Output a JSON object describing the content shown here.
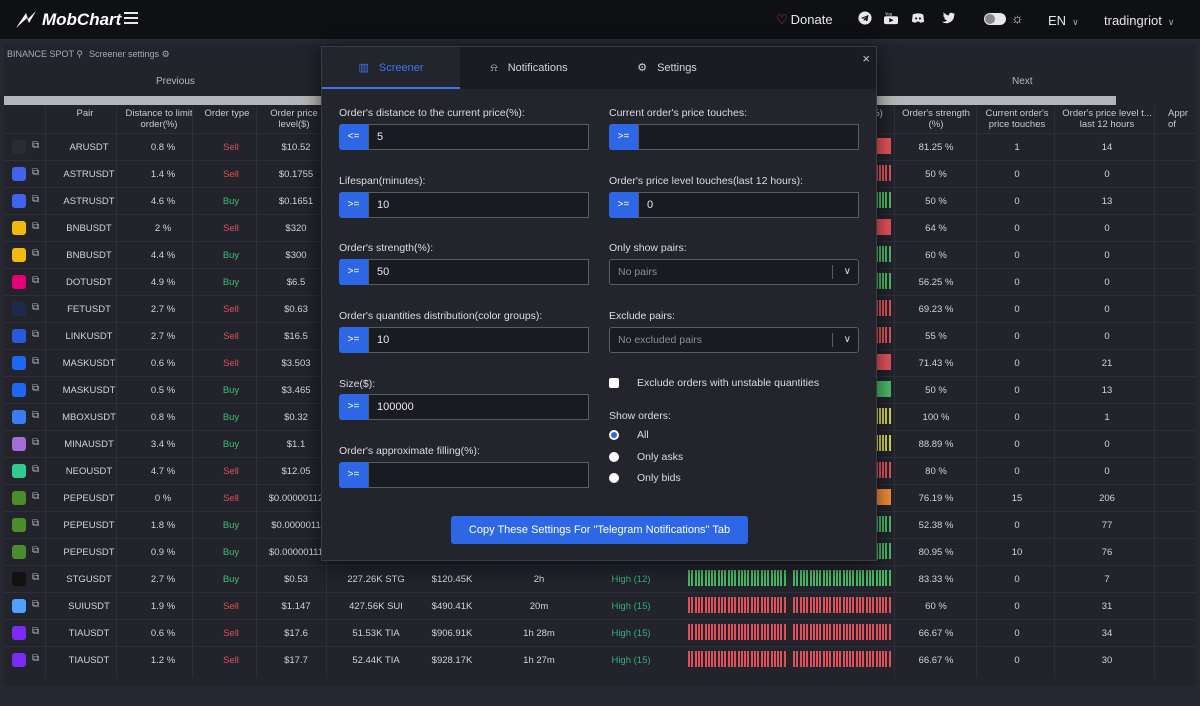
{
  "app": {
    "logo_text": "MobChart"
  },
  "topbar": {
    "donate": "Donate",
    "language": "EN",
    "user": "tradingriot"
  },
  "subbar": {
    "exchange": "BINANCE SPOT",
    "settings": "Screener settings"
  },
  "nav": {
    "previous": "Previous",
    "next": "Next"
  },
  "table": {
    "headers_left": [
      "Pair",
      "Distance to limit order(%)",
      "Order type",
      "Order price level($)"
    ],
    "headers_right": [
      "Order's strength (%)",
      "Current order's price touches",
      "Order's price level t... last 12 hours",
      "Appr of"
    ],
    "partial_right_header": "%)",
    "rows": [
      {
        "pair": "ARUSDT",
        "dist": "0.8 %",
        "type": "Sell",
        "price": "$10.52",
        "strength": "81.25 %",
        "touches": "1",
        "level_touches": "14",
        "icon": "#2b2c33",
        "color": "#e0505a",
        "bars": "solid"
      },
      {
        "pair": "ASTRUSDT",
        "dist": "1.4 %",
        "type": "Sell",
        "price": "$0.1755",
        "strength": "50 %",
        "touches": "0",
        "level_touches": "0",
        "icon": "#4263eb",
        "color": "#e0505a",
        "bars": "striped"
      },
      {
        "pair": "ASTRUSDT",
        "dist": "4.6 %",
        "type": "Buy",
        "price": "$0.1651",
        "strength": "50 %",
        "touches": "0",
        "level_touches": "13",
        "icon": "#4263eb",
        "color": "#47b865",
        "bars": "striped"
      },
      {
        "pair": "BNBUSDT",
        "dist": "2 %",
        "type": "Sell",
        "price": "$320",
        "strength": "64 %",
        "touches": "0",
        "level_touches": "0",
        "icon": "#f0b90b",
        "color": "#e0505a",
        "bars": "solid"
      },
      {
        "pair": "BNBUSDT",
        "dist": "4.4 %",
        "type": "Buy",
        "price": "$300",
        "strength": "60 %",
        "touches": "0",
        "level_touches": "0",
        "icon": "#f0b90b",
        "color": "#47b865",
        "bars": "striped"
      },
      {
        "pair": "DOTUSDT",
        "dist": "4.9 %",
        "type": "Buy",
        "price": "$6.5",
        "strength": "56.25 %",
        "touches": "0",
        "level_touches": "0",
        "icon": "#e6007a",
        "color": "#47b865",
        "bars": "striped"
      },
      {
        "pair": "FETUSDT",
        "dist": "2.7 %",
        "type": "Sell",
        "price": "$0.63",
        "strength": "69.23 %",
        "touches": "0",
        "level_touches": "0",
        "icon": "#1d2a4a",
        "color": "#e0505a",
        "bars": "striped"
      },
      {
        "pair": "LINKUSDT",
        "dist": "2.7 %",
        "type": "Sell",
        "price": "$16.5",
        "strength": "55 %",
        "touches": "0",
        "level_touches": "0",
        "icon": "#2a5ada",
        "color": "#e0505a",
        "bars": "striped"
      },
      {
        "pair": "MASKUSDT",
        "dist": "0.6 %",
        "type": "Sell",
        "price": "$3.503",
        "strength": "71.43 %",
        "touches": "0",
        "level_touches": "21",
        "icon": "#1c68f3",
        "color": "#e0505a",
        "bars": "solid"
      },
      {
        "pair": "MASKUSDT",
        "dist": "0.5 %",
        "type": "Buy",
        "price": "$3.465",
        "strength": "50 %",
        "touches": "0",
        "level_touches": "13",
        "icon": "#1c68f3",
        "color": "#47b865",
        "bars": "solid"
      },
      {
        "pair": "MBOXUSDT",
        "dist": "0.8 %",
        "type": "Buy",
        "price": "$0.32",
        "strength": "100 %",
        "touches": "0",
        "level_touches": "1",
        "icon": "#3b7bf5",
        "color": "#d4d34a",
        "bars": "striped"
      },
      {
        "pair": "MINAUSDT",
        "dist": "3.4 %",
        "type": "Buy",
        "price": "$1.1",
        "strength": "88.89 %",
        "touches": "0",
        "level_touches": "0",
        "icon": "#a56bd9",
        "color": "#d4d34a",
        "bars": "striped"
      },
      {
        "pair": "NEOUSDT",
        "dist": "4.7 %",
        "type": "Sell",
        "price": "$12.05",
        "strength": "80 %",
        "touches": "0",
        "level_touches": "0",
        "icon": "#2fcb8f",
        "color": "#e0505a",
        "bars": "striped"
      },
      {
        "pair": "PEPEUSDT",
        "dist": "0 %",
        "type": "Sell",
        "price": "$0.00000112",
        "strength": "76.19 %",
        "touches": "15",
        "level_touches": "206",
        "icon": "#4c8c2b",
        "color": "#ee8a3a",
        "bars": "solid"
      },
      {
        "pair": "PEPEUSDT",
        "dist": "1.8 %",
        "type": "Buy",
        "price": "$0.0000011",
        "strength": "52.38 %",
        "touches": "0",
        "level_touches": "77",
        "icon": "#4c8c2b",
        "color": "#47b865",
        "bars": "striped"
      },
      {
        "pair": "PEPEUSDT",
        "dist": "0.9 %",
        "type": "Buy",
        "price": "$0.00000111",
        "strength": "80.95 %",
        "touches": "10",
        "level_touches": "76",
        "icon": "#4c8c2b",
        "color": "#47b865",
        "bars": "striped"
      },
      {
        "pair": "STGUSDT",
        "dist": "2.7 %",
        "type": "Buy",
        "price": "$0.53",
        "qty": "227.26K STG",
        "usd": "$120.45K",
        "life": "2h",
        "level": "High (12)",
        "strength": "83.33 %",
        "touches": "0",
        "level_touches": "7",
        "icon": "#111111",
        "color": "#47b865",
        "bars": "striped"
      },
      {
        "pair": "SUIUSDT",
        "dist": "1.9 %",
        "type": "Sell",
        "price": "$1.147",
        "qty": "427.56K SUI",
        "usd": "$490.41K",
        "life": "20m",
        "level": "High (15)",
        "strength": "60 %",
        "touches": "0",
        "level_touches": "31",
        "icon": "#4da2ff",
        "color": "#e0505a",
        "bars": "striped"
      },
      {
        "pair": "TIAUSDT",
        "dist": "0.6 %",
        "type": "Sell",
        "price": "$17.6",
        "qty": "51.53K TIA",
        "usd": "$906.91K",
        "life": "1h 28m",
        "level": "High (15)",
        "strength": "66.67 %",
        "touches": "0",
        "level_touches": "34",
        "icon": "#7b2bf9",
        "color": "#e0505a",
        "bars": "striped"
      },
      {
        "pair": "TIAUSDT",
        "dist": "1.2 %",
        "type": "Sell",
        "price": "$17.7",
        "qty": "52.44K TIA",
        "usd": "$928.17K",
        "life": "1h 27m",
        "level": "High (15)",
        "strength": "66.67 %",
        "touches": "0",
        "level_touches": "30",
        "icon": "#7b2bf9",
        "color": "#e0505a",
        "bars": "striped"
      }
    ]
  },
  "modal": {
    "tabs": [
      "Screener",
      "Notifications",
      "Settings"
    ],
    "active_tab": "Screener",
    "close": "×",
    "left_fields": [
      {
        "label": "Order's distance to the current price(%):",
        "op": "<=",
        "value": "5"
      },
      {
        "label": "Lifespan(minutes):",
        "op": ">=",
        "value": "10"
      },
      {
        "label": "Order's strength(%):",
        "op": ">=",
        "value": "50"
      },
      {
        "label": "Order's quantities distribution(color groups):",
        "op": ">=",
        "value": "10"
      },
      {
        "label": "Size($):",
        "op": ">=",
        "value": "100000"
      },
      {
        "label": "Order's approximate filling(%):",
        "op": ">=",
        "value": ""
      }
    ],
    "right_fields": [
      {
        "label": "Current order's price touches:",
        "op": ">=",
        "value": ""
      },
      {
        "label": "Order's price level touches(last 12 hours):",
        "op": ">=",
        "value": "0"
      }
    ],
    "only_show_pairs": {
      "label": "Only show pairs:",
      "placeholder": "No pairs"
    },
    "exclude_pairs": {
      "label": "Exclude pairs:",
      "placeholder": "No excluded pairs"
    },
    "exclude_unstable": "Exclude orders with unstable quantities",
    "show_orders": {
      "label": "Show orders:",
      "options": [
        "All",
        "Only asks",
        "Only bids"
      ],
      "selected": "All"
    },
    "copy_button": "Copy These Settings For \"Telegram Notifications\" Tab"
  },
  "colors": {
    "accent": "#2d67e6",
    "sell": "#e0505a",
    "buy": "#3cbf7a",
    "high": "#2fb37a"
  }
}
